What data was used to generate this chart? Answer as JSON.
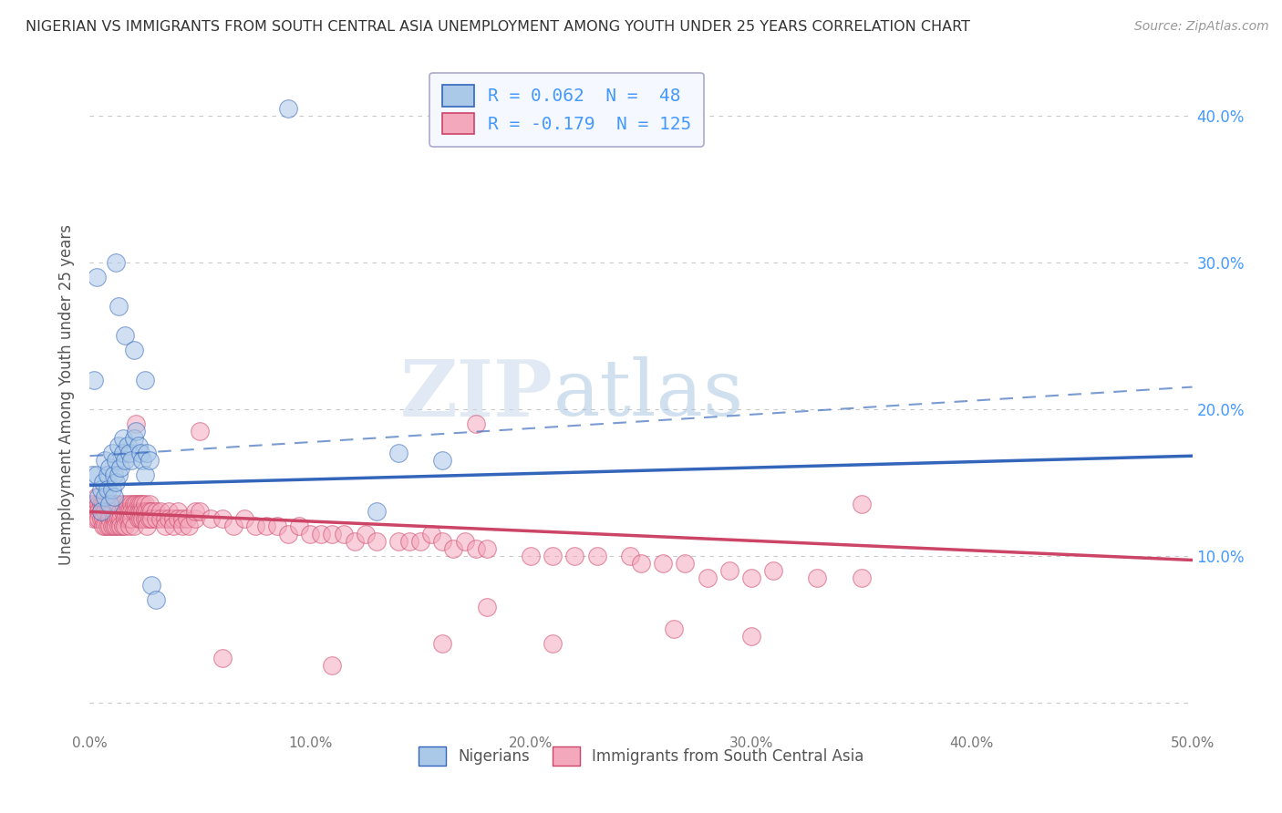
{
  "title": "NIGERIAN VS IMMIGRANTS FROM SOUTH CENTRAL ASIA UNEMPLOYMENT AMONG YOUTH UNDER 25 YEARS CORRELATION CHART",
  "source": "Source: ZipAtlas.com",
  "ylabel": "Unemployment Among Youth under 25 years",
  "xlim": [
    0.0,
    0.5
  ],
  "ylim": [
    -0.02,
    0.44
  ],
  "background_color": "#ffffff",
  "grid_color": "#bbbbbb",
  "nigerian_color": "#aac8e8",
  "immigrant_color": "#f4a8bc",
  "nigerian_line_color": "#3366bb",
  "immigrant_line_color": "#cc4466",
  "R_nigerian": 0.062,
  "N_nigerian": 48,
  "R_immigrant": -0.179,
  "N_immigrant": 125,
  "nigerian_points": [
    [
      0.001,
      0.155
    ],
    [
      0.002,
      0.22
    ],
    [
      0.003,
      0.155
    ],
    [
      0.004,
      0.14
    ],
    [
      0.005,
      0.145
    ],
    [
      0.005,
      0.13
    ],
    [
      0.006,
      0.15
    ],
    [
      0.007,
      0.165
    ],
    [
      0.007,
      0.14
    ],
    [
      0.008,
      0.155
    ],
    [
      0.008,
      0.145
    ],
    [
      0.009,
      0.16
    ],
    [
      0.009,
      0.135
    ],
    [
      0.01,
      0.17
    ],
    [
      0.01,
      0.145
    ],
    [
      0.011,
      0.155
    ],
    [
      0.011,
      0.14
    ],
    [
      0.012,
      0.165
    ],
    [
      0.012,
      0.15
    ],
    [
      0.013,
      0.175
    ],
    [
      0.013,
      0.155
    ],
    [
      0.014,
      0.16
    ],
    [
      0.015,
      0.17
    ],
    [
      0.015,
      0.18
    ],
    [
      0.016,
      0.165
    ],
    [
      0.017,
      0.175
    ],
    [
      0.018,
      0.17
    ],
    [
      0.019,
      0.165
    ],
    [
      0.02,
      0.18
    ],
    [
      0.021,
      0.185
    ],
    [
      0.022,
      0.175
    ],
    [
      0.023,
      0.17
    ],
    [
      0.024,
      0.165
    ],
    [
      0.025,
      0.155
    ],
    [
      0.026,
      0.17
    ],
    [
      0.027,
      0.165
    ],
    [
      0.028,
      0.08
    ],
    [
      0.03,
      0.07
    ],
    [
      0.003,
      0.29
    ],
    [
      0.012,
      0.3
    ],
    [
      0.013,
      0.27
    ],
    [
      0.016,
      0.25
    ],
    [
      0.02,
      0.24
    ],
    [
      0.025,
      0.22
    ],
    [
      0.14,
      0.17
    ],
    [
      0.16,
      0.165
    ],
    [
      0.09,
      0.405
    ],
    [
      0.13,
      0.13
    ]
  ],
  "immigrant_points": [
    [
      0.001,
      0.135
    ],
    [
      0.002,
      0.135
    ],
    [
      0.002,
      0.125
    ],
    [
      0.003,
      0.14
    ],
    [
      0.003,
      0.13
    ],
    [
      0.003,
      0.125
    ],
    [
      0.004,
      0.135
    ],
    [
      0.004,
      0.13
    ],
    [
      0.004,
      0.125
    ],
    [
      0.005,
      0.135
    ],
    [
      0.005,
      0.13
    ],
    [
      0.005,
      0.125
    ],
    [
      0.006,
      0.135
    ],
    [
      0.006,
      0.125
    ],
    [
      0.006,
      0.12
    ],
    [
      0.007,
      0.135
    ],
    [
      0.007,
      0.13
    ],
    [
      0.007,
      0.12
    ],
    [
      0.008,
      0.135
    ],
    [
      0.008,
      0.13
    ],
    [
      0.008,
      0.12
    ],
    [
      0.009,
      0.13
    ],
    [
      0.009,
      0.125
    ],
    [
      0.009,
      0.12
    ],
    [
      0.01,
      0.135
    ],
    [
      0.01,
      0.13
    ],
    [
      0.01,
      0.12
    ],
    [
      0.011,
      0.13
    ],
    [
      0.011,
      0.125
    ],
    [
      0.011,
      0.12
    ],
    [
      0.012,
      0.135
    ],
    [
      0.012,
      0.125
    ],
    [
      0.012,
      0.12
    ],
    [
      0.013,
      0.135
    ],
    [
      0.013,
      0.125
    ],
    [
      0.013,
      0.12
    ],
    [
      0.014,
      0.13
    ],
    [
      0.014,
      0.125
    ],
    [
      0.014,
      0.12
    ],
    [
      0.015,
      0.135
    ],
    [
      0.015,
      0.13
    ],
    [
      0.015,
      0.12
    ],
    [
      0.016,
      0.13
    ],
    [
      0.016,
      0.125
    ],
    [
      0.016,
      0.12
    ],
    [
      0.017,
      0.135
    ],
    [
      0.017,
      0.13
    ],
    [
      0.017,
      0.125
    ],
    [
      0.018,
      0.13
    ],
    [
      0.018,
      0.125
    ],
    [
      0.018,
      0.12
    ],
    [
      0.019,
      0.135
    ],
    [
      0.019,
      0.13
    ],
    [
      0.019,
      0.125
    ],
    [
      0.02,
      0.135
    ],
    [
      0.02,
      0.13
    ],
    [
      0.02,
      0.12
    ],
    [
      0.021,
      0.135
    ],
    [
      0.021,
      0.19
    ],
    [
      0.021,
      0.13
    ],
    [
      0.022,
      0.135
    ],
    [
      0.022,
      0.13
    ],
    [
      0.022,
      0.125
    ],
    [
      0.023,
      0.135
    ],
    [
      0.023,
      0.13
    ],
    [
      0.023,
      0.125
    ],
    [
      0.024,
      0.135
    ],
    [
      0.024,
      0.13
    ],
    [
      0.024,
      0.125
    ],
    [
      0.025,
      0.135
    ],
    [
      0.025,
      0.13
    ],
    [
      0.025,
      0.125
    ],
    [
      0.026,
      0.13
    ],
    [
      0.026,
      0.125
    ],
    [
      0.026,
      0.12
    ],
    [
      0.027,
      0.135
    ],
    [
      0.027,
      0.13
    ],
    [
      0.027,
      0.125
    ],
    [
      0.028,
      0.13
    ],
    [
      0.028,
      0.125
    ],
    [
      0.03,
      0.13
    ],
    [
      0.03,
      0.125
    ],
    [
      0.032,
      0.13
    ],
    [
      0.032,
      0.125
    ],
    [
      0.034,
      0.125
    ],
    [
      0.034,
      0.12
    ],
    [
      0.036,
      0.13
    ],
    [
      0.036,
      0.125
    ],
    [
      0.038,
      0.125
    ],
    [
      0.038,
      0.12
    ],
    [
      0.04,
      0.13
    ],
    [
      0.04,
      0.125
    ],
    [
      0.042,
      0.125
    ],
    [
      0.042,
      0.12
    ],
    [
      0.044,
      0.125
    ],
    [
      0.045,
      0.12
    ],
    [
      0.048,
      0.125
    ],
    [
      0.048,
      0.13
    ],
    [
      0.05,
      0.13
    ],
    [
      0.05,
      0.185
    ],
    [
      0.055,
      0.125
    ],
    [
      0.06,
      0.125
    ],
    [
      0.065,
      0.12
    ],
    [
      0.07,
      0.125
    ],
    [
      0.075,
      0.12
    ],
    [
      0.08,
      0.12
    ],
    [
      0.085,
      0.12
    ],
    [
      0.09,
      0.115
    ],
    [
      0.095,
      0.12
    ],
    [
      0.1,
      0.115
    ],
    [
      0.105,
      0.115
    ],
    [
      0.11,
      0.115
    ],
    [
      0.115,
      0.115
    ],
    [
      0.12,
      0.11
    ],
    [
      0.125,
      0.115
    ],
    [
      0.13,
      0.11
    ],
    [
      0.14,
      0.11
    ],
    [
      0.145,
      0.11
    ],
    [
      0.15,
      0.11
    ],
    [
      0.155,
      0.115
    ],
    [
      0.16,
      0.11
    ],
    [
      0.165,
      0.105
    ],
    [
      0.17,
      0.11
    ],
    [
      0.175,
      0.105
    ],
    [
      0.175,
      0.19
    ],
    [
      0.18,
      0.105
    ],
    [
      0.2,
      0.1
    ],
    [
      0.21,
      0.1
    ],
    [
      0.22,
      0.1
    ],
    [
      0.23,
      0.1
    ],
    [
      0.245,
      0.1
    ],
    [
      0.25,
      0.095
    ],
    [
      0.26,
      0.095
    ],
    [
      0.27,
      0.095
    ],
    [
      0.28,
      0.085
    ],
    [
      0.29,
      0.09
    ],
    [
      0.3,
      0.085
    ],
    [
      0.31,
      0.09
    ],
    [
      0.33,
      0.085
    ],
    [
      0.35,
      0.085
    ],
    [
      0.06,
      0.03
    ],
    [
      0.11,
      0.025
    ],
    [
      0.16,
      0.04
    ],
    [
      0.18,
      0.065
    ],
    [
      0.21,
      0.04
    ],
    [
      0.265,
      0.05
    ],
    [
      0.3,
      0.045
    ],
    [
      0.35,
      0.135
    ]
  ],
  "xticks": [
    0.0,
    0.1,
    0.2,
    0.3,
    0.4,
    0.5
  ],
  "xtick_labels": [
    "0.0%",
    "10.0%",
    "20.0%",
    "30.0%",
    "40.0%",
    "50.0%"
  ],
  "yticks_left": [
    0.0,
    0.1,
    0.2,
    0.3,
    0.4
  ],
  "ytick_labels_left": [
    "",
    "",
    "",
    "",
    ""
  ],
  "yticks_right": [
    0.1,
    0.2,
    0.3,
    0.4
  ],
  "ytick_labels_right": [
    "10.0%",
    "20.0%",
    "30.0%",
    "40.0%"
  ],
  "watermark_zip": "ZIP",
  "watermark_atlas": "atlas",
  "legend_R_color": "#4499ff",
  "nigerian_trend": [
    0.0,
    0.5,
    0.148,
    0.168
  ],
  "immigrant_trend": [
    0.0,
    0.5,
    0.13,
    0.097
  ],
  "conf_upper_nig": [
    0.0,
    0.5,
    0.168,
    0.215
  ]
}
